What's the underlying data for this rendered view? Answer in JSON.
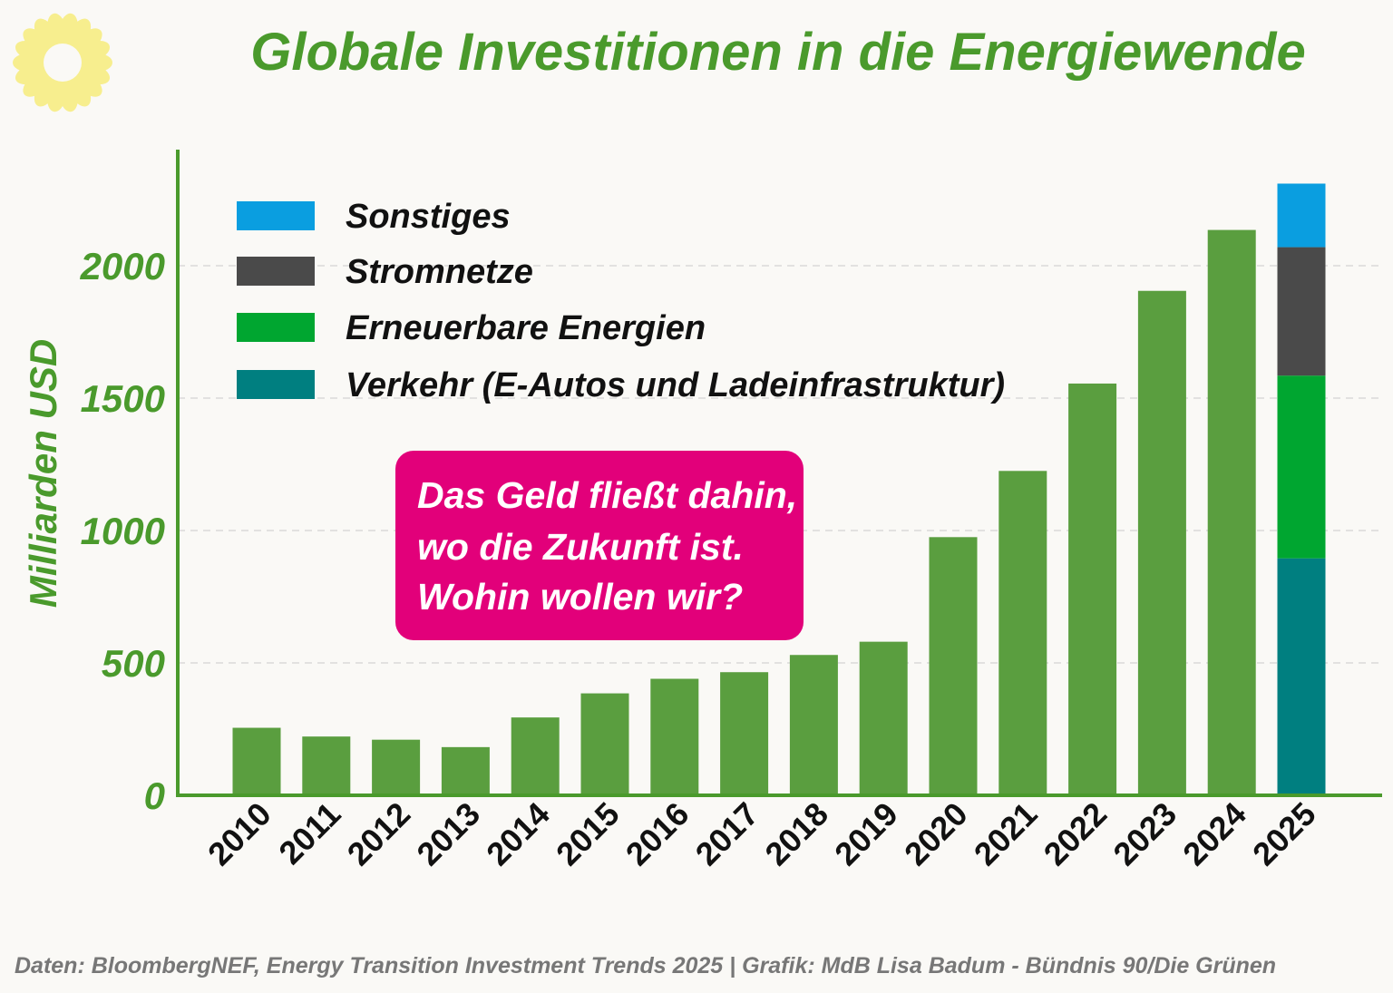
{
  "chart_data": {
    "type": "bar",
    "title": "Globale Investitionen in die Energiewende",
    "ylabel": "Milliarden USD",
    "xlabel": "",
    "ylim": [
      0,
      2400
    ],
    "yticks": [
      0,
      500,
      1000,
      1500,
      2000
    ],
    "grid": true,
    "categories": [
      "2010",
      "2011",
      "2012",
      "2013",
      "2014",
      "2015",
      "2016",
      "2017",
      "2018",
      "2019",
      "2020",
      "2021",
      "2022",
      "2023",
      "2024",
      "2025"
    ],
    "values": [
      255,
      222,
      210,
      182,
      294,
      385,
      440,
      465,
      530,
      580,
      975,
      1225,
      1555,
      1905,
      2135,
      null
    ],
    "total_color": "#5a9e3f",
    "stacked_2025": {
      "category": "2025",
      "segments": [
        {
          "name": "Verkehr (E-Autos und Ladeinfrastruktur)",
          "value": 895,
          "color": "#007f80"
        },
        {
          "name": "Erneuerbare Energien",
          "value": 690,
          "color": "#00a630"
        },
        {
          "name": "Stromnetze",
          "value": 485,
          "color": "#4a4a4a"
        },
        {
          "name": "Sonstiges",
          "value": 240,
          "color": "#0a9ee0"
        }
      ]
    },
    "legend": [
      {
        "label": "Sonstiges",
        "color": "#0a9ee0"
      },
      {
        "label": "Stromnetze",
        "color": "#4a4a4a"
      },
      {
        "label": "Erneuerbare Energien",
        "color": "#00a630"
      },
      {
        "label": "Verkehr (E-Autos und Ladeinfrastruktur)",
        "color": "#007f80"
      }
    ],
    "legend_position": "top-left",
    "annotation": {
      "lines": [
        "Das Geld fließt dahin,",
        "wo die Zukunft ist.",
        "Wohin wollen wir?"
      ],
      "color": "#e2007a"
    },
    "source": "Daten: BloombergNEF, Energy Transition Investment Trends 2025 | Grafik: MdB Lisa Badum - Bündnis 90/Die Grünen",
    "axis_color": "#4a9a2c"
  },
  "logo": {
    "name": "sunflower",
    "color": "#f7ee8e"
  }
}
